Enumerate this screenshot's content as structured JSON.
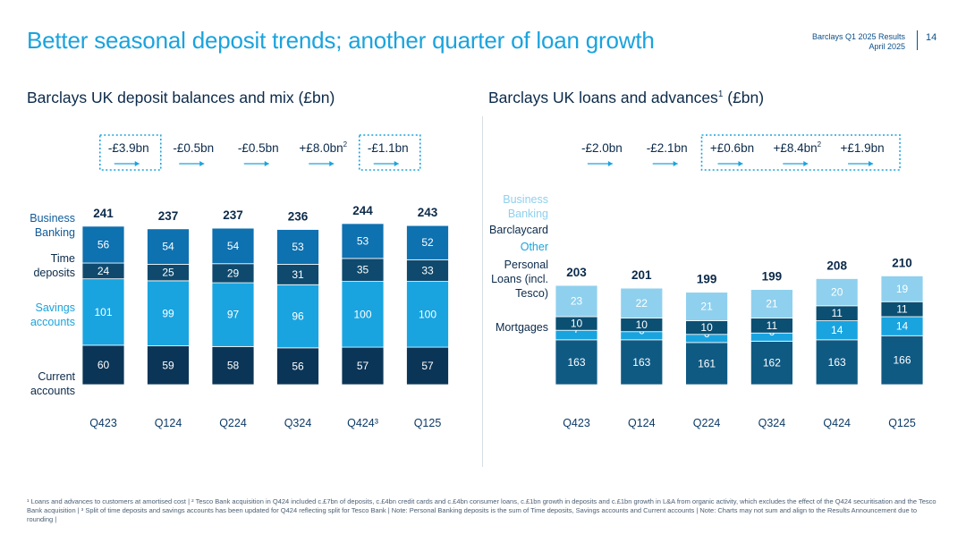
{
  "header": {
    "title": "Better seasonal deposit trends; another quarter of loan growth",
    "report": "Barclays Q1 2025 Results",
    "date": "April 2025",
    "page": "14"
  },
  "colors": {
    "dark_navy": "#0b3557",
    "navy": "#0f5a83",
    "mid_blue": "#0e71b0",
    "cyan": "#19a4e0",
    "light_blue": "#8fd0ee",
    "label_blue": "#1aa3dd",
    "arrow_blue": "#1aa3dd"
  },
  "footnote": "¹ Loans and advances to customers at amortised cost | ² Tesco Bank acquisition in Q424 included c.£7bn of deposits, c.£4bn credit cards and c.£4bn consumer loans, c.£1bn growth in deposits and c.£1bn growth in L&A from organic activity, which excludes the effect of the Q424 securitisation and the Tesco Bank acquisition | ³ Split of time deposits and savings accounts has been updated for Q424 reflecting split for Tesco Bank | Note: Personal Banking deposits is the sum of Time deposits, Savings accounts and Current accounts | Note: Charts may not sum and align to the Results Announcement due to rounding |",
  "chart_data": [
    {
      "type": "bar",
      "stacked": true,
      "title": "Barclays UK deposit balances and mix (£bn)",
      "categories": [
        "Q423",
        "Q124",
        "Q224",
        "Q324",
        "Q424³",
        "Q125"
      ],
      "totals": [
        "241",
        "237",
        "237",
        "236",
        "244",
        "243"
      ],
      "changes": [
        {
          "label": "-£3.9bn",
          "sup": "",
          "boxed": true
        },
        {
          "label": "-£0.5bn",
          "sup": "",
          "boxed": false
        },
        {
          "label": "-£0.5bn",
          "sup": "",
          "boxed": false
        },
        {
          "label": "+£8.0bn",
          "sup": "2",
          "boxed": false
        },
        {
          "label": "-£1.1bn",
          "sup": "",
          "boxed": true
        }
      ],
      "series": [
        {
          "name": "Current accounts",
          "color": "#0b3557",
          "values": [
            60,
            59,
            58,
            56,
            57,
            57
          ]
        },
        {
          "name": "Savings accounts",
          "color": "#19a4e0",
          "values": [
            101,
            99,
            97,
            96,
            100,
            100
          ]
        },
        {
          "name": "Time deposits",
          "color": "#0f4a6e",
          "values": [
            24,
            25,
            29,
            31,
            35,
            33
          ]
        },
        {
          "name": "Business Banking",
          "color": "#0e71b0",
          "values": [
            56,
            54,
            54,
            53,
            53,
            52
          ]
        }
      ]
    },
    {
      "type": "bar",
      "stacked": true,
      "title": "Barclays UK loans and advances",
      "title_sup": "1",
      "title_suffix": " (£bn)",
      "categories": [
        "Q423",
        "Q124",
        "Q224",
        "Q324",
        "Q424",
        "Q125"
      ],
      "totals": [
        "203",
        "201",
        "199",
        "199",
        "208",
        "210"
      ],
      "changes": [
        {
          "label": "-£2.0bn",
          "sup": ""
        },
        {
          "label": "-£2.1bn",
          "sup": ""
        },
        {
          "label": "+£0.6bn",
          "sup": ""
        },
        {
          "label": "+£8.4bn",
          "sup": "2"
        },
        {
          "label": "+£1.9bn",
          "sup": ""
        }
      ],
      "series": [
        {
          "name": "Mortgages",
          "color": "#0f5a83",
          "values": [
            163,
            163,
            161,
            162,
            163,
            166
          ]
        },
        {
          "name": "Other Personal Loans (incl. Tesco)",
          "color": "#19a4e0",
          "values": [
            7,
            6,
            6,
            6,
            14,
            14
          ]
        },
        {
          "name": "Barclaycard",
          "color": "#0b4f72",
          "values": [
            10,
            10,
            10,
            11,
            11,
            11
          ]
        },
        {
          "name": "Business Banking",
          "color": "#8fd0ee",
          "values": [
            23,
            22,
            21,
            21,
            20,
            19
          ]
        }
      ]
    }
  ],
  "legend_left": [
    {
      "lines": [
        "Business",
        "Banking"
      ],
      "color": "#0e5a9a"
    },
    {
      "lines": [
        "Time",
        "deposits"
      ],
      "color": "#0b2a4a"
    },
    {
      "lines": [
        "Savings",
        "accounts"
      ],
      "color": "#1aa3dd"
    },
    {
      "lines": [
        "Current",
        "accounts"
      ],
      "color": "#0b2a4a"
    }
  ],
  "legend_right": [
    {
      "lines": [
        "Business",
        "Banking"
      ],
      "color": "#8fd0ee"
    },
    {
      "lines": [
        "Barclaycard"
      ],
      "color": "#0b2a4a"
    },
    {
      "lines": [
        "Other"
      ],
      "color": "#1aa3dd"
    },
    {
      "lines": [
        "Personal",
        "Loans (incl.",
        "Tesco)"
      ],
      "color": "#0b2a4a"
    },
    {
      "lines": [
        "Mortgages"
      ],
      "color": "#0b2a4a"
    }
  ]
}
